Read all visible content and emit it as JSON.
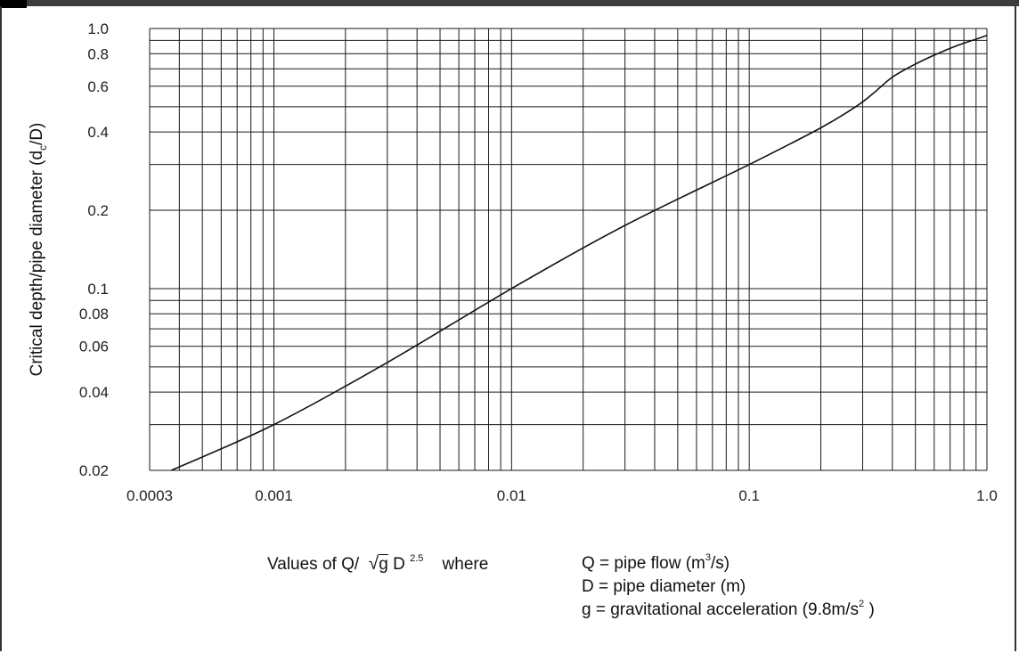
{
  "chart_data": {
    "type": "line",
    "xscale": "log",
    "yscale": "log",
    "xlim": [
      0.0003,
      1.0
    ],
    "ylim": [
      0.02,
      1.0
    ],
    "x_ticks": [
      {
        "value": 0.0003,
        "label": "0.0003"
      },
      {
        "value": 0.001,
        "label": "0.001"
      },
      {
        "value": 0.01,
        "label": "0.01"
      },
      {
        "value": 0.1,
        "label": "0.1"
      },
      {
        "value": 1.0,
        "label": "1.0"
      }
    ],
    "y_ticks": [
      {
        "value": 0.02,
        "label": "0.02"
      },
      {
        "value": 0.04,
        "label": "0.04"
      },
      {
        "value": 0.06,
        "label": "0.06"
      },
      {
        "value": 0.08,
        "label": "0.08"
      },
      {
        "value": 0.1,
        "label": "0.1"
      },
      {
        "value": 0.2,
        "label": "0.2"
      },
      {
        "value": 0.4,
        "label": "0.4"
      },
      {
        "value": 0.6,
        "label": "0.6"
      },
      {
        "value": 0.8,
        "label": "0.8"
      },
      {
        "value": 1.0,
        "label": "1.0"
      }
    ],
    "grid": true,
    "series": [
      {
        "x": [
          0.00037,
          0.001,
          0.003,
          0.01,
          0.03,
          0.1,
          0.2,
          0.28,
          0.33,
          0.4,
          0.5,
          0.6,
          0.75,
          0.9,
          1.0
        ],
        "y": [
          0.02,
          0.03,
          0.052,
          0.1,
          0.175,
          0.3,
          0.415,
          0.5,
          0.56,
          0.65,
          0.73,
          0.79,
          0.86,
          0.91,
          0.94
        ]
      }
    ],
    "ylabel": "Critical depth/pipe diameter (d",
    "ylabel_sub": "c",
    "ylabel_tail": "/D)"
  },
  "caption": {
    "prefix": "Values of Q/",
    "sqrt_symbol": "√",
    "g": "g",
    "d": "D",
    "exp": "2.5",
    "where": "where",
    "defs": [
      {
        "text": "Q = pipe flow (m",
        "sup": "3",
        "tail": "/s)"
      },
      {
        "text": "D = pipe diameter (m)",
        "sup": "",
        "tail": ""
      },
      {
        "text": "g = gravitational acceleration (9.8m/s",
        "sup": "2",
        "tail": ")"
      }
    ]
  }
}
